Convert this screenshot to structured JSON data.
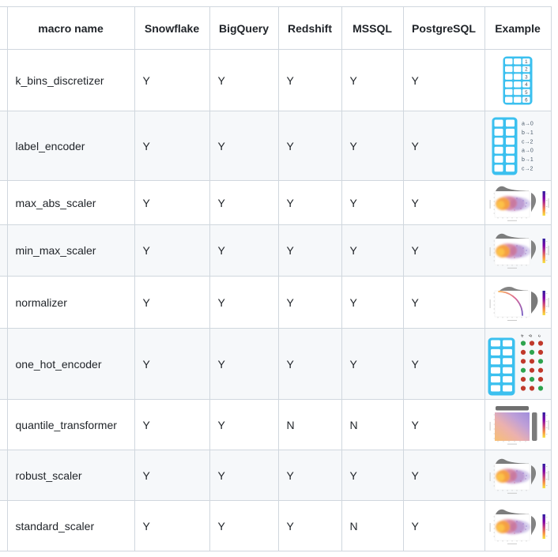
{
  "table": {
    "headers": [
      "macro name",
      "Snowflake",
      "BigQuery",
      "Redshift",
      "MSSQL",
      "PostgreSQL",
      "Example"
    ],
    "rows": [
      {
        "name": "k_bins_discretizer",
        "snowflake": "Y",
        "bigquery": "Y",
        "redshift": "Y",
        "mssql": "Y",
        "postgresql": "Y",
        "example_icon": "kbins-table"
      },
      {
        "name": "label_encoder",
        "snowflake": "Y",
        "bigquery": "Y",
        "redshift": "Y",
        "mssql": "Y",
        "postgresql": "Y",
        "example_icon": "label-encoder"
      },
      {
        "name": "max_abs_scaler",
        "snowflake": "Y",
        "bigquery": "Y",
        "redshift": "Y",
        "mssql": "Y",
        "postgresql": "Y",
        "example_icon": "jointplot-scatter"
      },
      {
        "name": "min_max_scaler",
        "snowflake": "Y",
        "bigquery": "Y",
        "redshift": "Y",
        "mssql": "Y",
        "postgresql": "Y",
        "example_icon": "jointplot-scatter"
      },
      {
        "name": "normalizer",
        "snowflake": "Y",
        "bigquery": "Y",
        "redshift": "Y",
        "mssql": "Y",
        "postgresql": "Y",
        "example_icon": "jointplot-curve"
      },
      {
        "name": "one_hot_encoder",
        "snowflake": "Y",
        "bigquery": "Y",
        "redshift": "Y",
        "mssql": "Y",
        "postgresql": "Y",
        "example_icon": "onehot-dots"
      },
      {
        "name": "quantile_transformer",
        "snowflake": "Y",
        "bigquery": "Y",
        "redshift": "N",
        "mssql": "N",
        "postgresql": "Y",
        "example_icon": "jointplot-uniform"
      },
      {
        "name": "robust_scaler",
        "snowflake": "Y",
        "bigquery": "Y",
        "redshift": "Y",
        "mssql": "Y",
        "postgresql": "Y",
        "example_icon": "jointplot-scatter"
      },
      {
        "name": "standard_scaler",
        "snowflake": "Y",
        "bigquery": "Y",
        "redshift": "Y",
        "mssql": "N",
        "postgresql": "Y",
        "example_icon": "jointplot-scatter"
      }
    ]
  },
  "icons": {
    "kbins": {
      "digits": [
        "1",
        "2",
        "3",
        "4",
        "5",
        "6"
      ]
    },
    "label_encoder": {
      "mappings": [
        "a→0",
        "b→1",
        "c→2",
        "a→0",
        "b→1",
        "c→2"
      ]
    },
    "onehot": {
      "columns": [
        "a",
        "b",
        "c"
      ],
      "pattern": [
        "grr",
        "rgr",
        "rrg",
        "grr",
        "rgr",
        "rrg"
      ]
    }
  },
  "colors": {
    "accent_cyan": "#3bc0ef",
    "green": "#2da44e",
    "red": "#c0392b",
    "stripe": "#f6f8fa",
    "border": "#d0d7de",
    "text": "#1f2328",
    "colorbar_top": "#2d1e9e",
    "colorbar_bottom": "#f5e642"
  }
}
